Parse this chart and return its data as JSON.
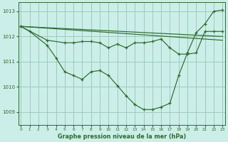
{
  "title": "Graphe pression niveau de la mer (hPa)",
  "background_color": "#cceee8",
  "grid_color": "#99ccbb",
  "line_color": "#2d6a2d",
  "xlim": [
    -0.3,
    23.3
  ],
  "ylim": [
    1008.5,
    1013.35
  ],
  "yticks": [
    1009,
    1010,
    1011,
    1012,
    1013
  ],
  "xticks": [
    0,
    1,
    2,
    3,
    4,
    5,
    6,
    7,
    8,
    9,
    10,
    11,
    12,
    13,
    14,
    15,
    16,
    17,
    18,
    19,
    20,
    21,
    22,
    23
  ],
  "series": [
    {
      "x": [
        0,
        1,
        3,
        4,
        5,
        6,
        7,
        8,
        9,
        10,
        11,
        12,
        13,
        14,
        15,
        16,
        17,
        18,
        19,
        20,
        21,
        22,
        23
      ],
      "y": [
        1012.4,
        1012.2,
        1011.65,
        1011.15,
        1010.6,
        1010.45,
        1010.3,
        1010.6,
        1010.65,
        1010.45,
        1010.05,
        1009.65,
        1009.3,
        1009.1,
        1009.1,
        1009.2,
        1009.35,
        1010.45,
        1011.35,
        1012.15,
        1012.5,
        1013.0,
        1013.05
      ]
    },
    {
      "x": [
        0,
        3,
        5,
        6,
        7,
        8,
        9,
        10,
        11,
        12,
        13,
        14,
        15,
        16,
        17,
        18,
        19,
        20,
        21,
        22,
        23
      ],
      "y": [
        1012.4,
        1011.85,
        1011.75,
        1011.75,
        1011.8,
        1011.8,
        1011.75,
        1011.55,
        1011.7,
        1011.55,
        1011.75,
        1011.75,
        1011.8,
        1011.9,
        1011.55,
        1011.3,
        1011.3,
        1011.35,
        1012.2,
        1012.2,
        1012.2
      ]
    },
    {
      "x": [
        0,
        23
      ],
      "y": [
        1012.4,
        1011.85
      ]
    },
    {
      "x": [
        0,
        23
      ],
      "y": [
        1012.4,
        1012.0
      ]
    }
  ]
}
